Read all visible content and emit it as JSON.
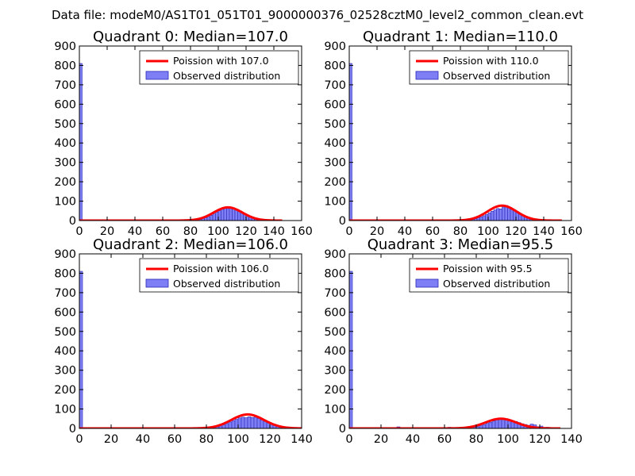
{
  "figure": {
    "suptitle": "Data file: modeM0/AS1T01_051T01_9000000376_02528cztM0_level2_common_clean.evt"
  },
  "chart_data": [
    {
      "type": "bar",
      "title": "Quadrant 0: Median=107.0",
      "xlim": [
        0,
        160
      ],
      "ylim": [
        0,
        900
      ],
      "xticks": [
        0,
        20,
        40,
        60,
        80,
        100,
        120,
        140,
        160
      ],
      "yticks": [
        0,
        100,
        200,
        300,
        400,
        500,
        600,
        700,
        800,
        900
      ],
      "legend": {
        "placement": "top-right",
        "entries": [
          "Poission with 107.0",
          "Observed distribution"
        ]
      },
      "colors": {
        "bars": "#7f7ff5",
        "bar_edge": "#2a2ab8",
        "line": "#ff0000"
      },
      "bin_width": 2,
      "bins": [
        [
          0,
          810
        ],
        [
          80,
          3
        ],
        [
          84,
          5
        ],
        [
          86,
          7
        ],
        [
          88,
          11
        ],
        [
          90,
          15
        ],
        [
          92,
          20
        ],
        [
          94,
          27
        ],
        [
          96,
          34
        ],
        [
          98,
          44
        ],
        [
          100,
          51
        ],
        [
          102,
          58
        ],
        [
          104,
          66
        ],
        [
          106,
          62
        ],
        [
          108,
          64
        ],
        [
          110,
          60
        ],
        [
          112,
          56
        ],
        [
          114,
          50
        ],
        [
          116,
          42
        ],
        [
          118,
          35
        ],
        [
          120,
          28
        ],
        [
          122,
          22
        ],
        [
          124,
          16
        ],
        [
          126,
          11
        ],
        [
          128,
          7
        ],
        [
          130,
          5
        ],
        [
          132,
          3
        ]
      ],
      "poisson_mean": 107.0,
      "poisson_peak": 68,
      "poisson_xrange": [
        0,
        146
      ]
    },
    {
      "type": "bar",
      "title": "Quadrant 1: Median=110.0",
      "xlim": [
        0,
        160
      ],
      "ylim": [
        0,
        900
      ],
      "xticks": [
        0,
        20,
        40,
        60,
        80,
        100,
        120,
        140,
        160
      ],
      "yticks": [
        0,
        100,
        200,
        300,
        400,
        500,
        600,
        700,
        800,
        900
      ],
      "legend": {
        "placement": "top-right",
        "entries": [
          "Poission with 110.0",
          "Observed distribution"
        ]
      },
      "colors": {
        "bars": "#7f7ff5",
        "bar_edge": "#2a2ab8",
        "line": "#ff0000"
      },
      "bin_width": 2,
      "bins": [
        [
          0,
          810
        ],
        [
          84,
          3
        ],
        [
          86,
          5
        ],
        [
          88,
          7
        ],
        [
          90,
          10
        ],
        [
          92,
          14
        ],
        [
          94,
          19
        ],
        [
          96,
          25
        ],
        [
          98,
          32
        ],
        [
          100,
          40
        ],
        [
          102,
          48
        ],
        [
          104,
          55
        ],
        [
          106,
          62
        ],
        [
          108,
          60
        ],
        [
          110,
          70
        ],
        [
          112,
          78
        ],
        [
          114,
          66
        ],
        [
          116,
          58
        ],
        [
          118,
          52
        ],
        [
          120,
          44
        ],
        [
          122,
          36
        ],
        [
          124,
          28
        ],
        [
          126,
          21
        ],
        [
          128,
          15
        ],
        [
          130,
          10
        ],
        [
          132,
          7
        ],
        [
          134,
          4
        ]
      ],
      "poisson_mean": 110.0,
      "poisson_peak": 77,
      "poisson_xrange": [
        0,
        153
      ]
    },
    {
      "type": "bar",
      "title": "Quadrant 2: Median=106.0",
      "xlim": [
        0,
        140
      ],
      "ylim": [
        0,
        900
      ],
      "xticks": [
        0,
        20,
        40,
        60,
        80,
        100,
        120,
        140
      ],
      "yticks": [
        0,
        100,
        200,
        300,
        400,
        500,
        600,
        700,
        800,
        900
      ],
      "legend": {
        "placement": "top-right",
        "entries": [
          "Poission with 106.0",
          "Observed distribution"
        ]
      },
      "colors": {
        "bars": "#7f7ff5",
        "bar_edge": "#2a2ab8",
        "line": "#ff0000"
      },
      "bin_width": 2,
      "bins": [
        [
          0,
          810
        ],
        [
          82,
          3
        ],
        [
          84,
          5
        ],
        [
          86,
          8
        ],
        [
          88,
          12
        ],
        [
          90,
          18
        ],
        [
          92,
          25
        ],
        [
          94,
          33
        ],
        [
          96,
          40
        ],
        [
          98,
          47
        ],
        [
          100,
          54
        ],
        [
          102,
          58
        ],
        [
          104,
          55
        ],
        [
          106,
          60
        ],
        [
          108,
          56
        ],
        [
          110,
          58
        ],
        [
          112,
          52
        ],
        [
          114,
          44
        ],
        [
          116,
          36
        ],
        [
          118,
          29
        ],
        [
          120,
          22
        ],
        [
          122,
          16
        ],
        [
          124,
          11
        ],
        [
          126,
          7
        ],
        [
          128,
          4
        ]
      ],
      "poisson_mean": 106.0,
      "poisson_peak": 72,
      "poisson_xrange": [
        0,
        140
      ]
    },
    {
      "type": "bar",
      "title": "Quadrant 3: Median=95.5",
      "xlim": [
        0,
        140
      ],
      "ylim": [
        0,
        900
      ],
      "xticks": [
        0,
        20,
        40,
        60,
        80,
        100,
        120,
        140
      ],
      "yticks": [
        0,
        100,
        200,
        300,
        400,
        500,
        600,
        700,
        800,
        900
      ],
      "legend": {
        "placement": "top-right",
        "entries": [
          "Poission with 95.5",
          "Observed distribution"
        ]
      },
      "colors": {
        "bars": "#7f7ff5",
        "bar_edge": "#2a2ab8",
        "line": "#ff0000"
      },
      "bin_width": 2,
      "bins": [
        [
          0,
          810
        ],
        [
          30,
          8
        ],
        [
          62,
          6
        ],
        [
          70,
          5
        ],
        [
          74,
          4
        ],
        [
          78,
          6
        ],
        [
          80,
          9
        ],
        [
          82,
          14
        ],
        [
          84,
          20
        ],
        [
          86,
          26
        ],
        [
          88,
          32
        ],
        [
          90,
          38
        ],
        [
          92,
          44
        ],
        [
          94,
          46
        ],
        [
          96,
          50
        ],
        [
          98,
          48
        ],
        [
          100,
          45
        ],
        [
          102,
          40
        ],
        [
          104,
          36
        ],
        [
          106,
          30
        ],
        [
          108,
          24
        ],
        [
          110,
          20
        ],
        [
          112,
          16
        ],
        [
          114,
          22
        ],
        [
          116,
          18
        ],
        [
          118,
          9
        ],
        [
          120,
          12
        ],
        [
          124,
          6
        ],
        [
          128,
          3
        ]
      ],
      "poisson_mean": 95.5,
      "poisson_peak": 50,
      "poisson_xrange": [
        0,
        133
      ]
    }
  ]
}
